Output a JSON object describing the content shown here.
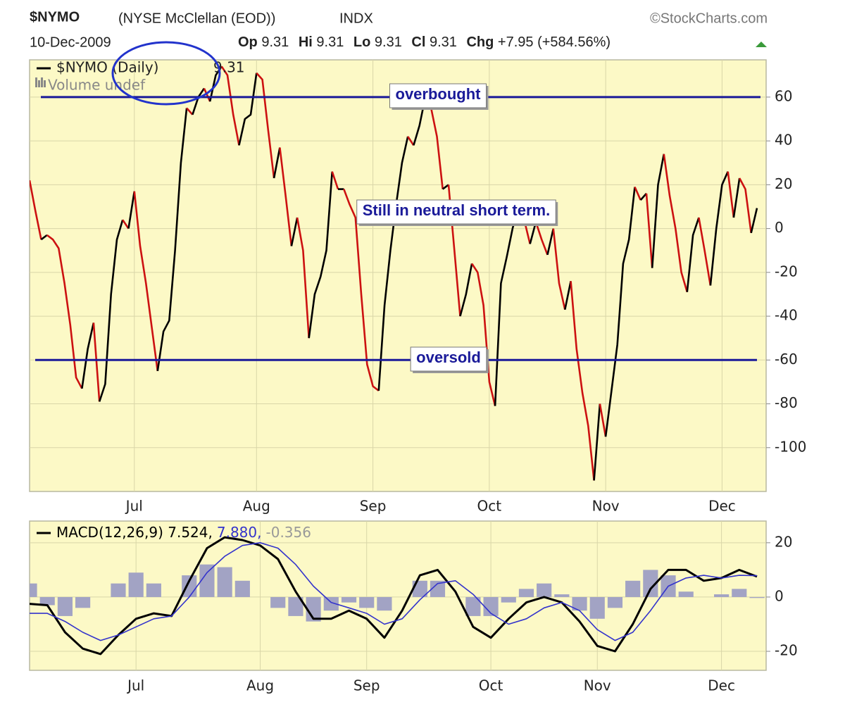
{
  "header": {
    "title": "$NYMO",
    "subtitle": "(NYSE McClellan (EOD))",
    "exchange": "INDX",
    "source": "©StockCharts.com",
    "date": "10-Dec-2009",
    "quote": [
      {
        "label": "Op",
        "value": 9.31
      },
      {
        "label": "Hi",
        "value": 9.31
      },
      {
        "label": "Lo",
        "value": 9.31
      },
      {
        "label": "Cl",
        "value": 9.31
      }
    ],
    "change_label": "Chg",
    "change": "+7.95 (+584.56%)"
  },
  "chart_data": [
    {
      "type": "line",
      "ylim": [
        -120,
        77
      ],
      "yticks": [
        -100,
        -80,
        -60,
        -40,
        -20,
        0,
        20,
        40,
        60
      ],
      "grid": true,
      "color_up": "#000000",
      "color_down": "#cc1111",
      "volume_label": "Volume undef",
      "hlines": [
        {
          "value": 60,
          "color": "#1a1a99"
        },
        {
          "value": -60,
          "color": "#1a1a99"
        }
      ],
      "annotations": [
        "overbought",
        "Still in neutral short term.",
        "oversold"
      ],
      "categories": [
        null,
        null,
        null,
        null,
        null,
        null,
        null,
        null,
        null,
        null,
        null,
        null,
        null,
        null,
        null,
        null,
        null,
        null,
        "Jul",
        null,
        null,
        null,
        null,
        null,
        null,
        null,
        null,
        null,
        null,
        null,
        null,
        null,
        null,
        null,
        null,
        null,
        null,
        null,
        null,
        "Aug",
        null,
        null,
        null,
        null,
        null,
        null,
        null,
        null,
        null,
        null,
        null,
        null,
        null,
        null,
        null,
        null,
        null,
        null,
        null,
        "Sep",
        null,
        null,
        null,
        null,
        null,
        null,
        null,
        null,
        null,
        null,
        null,
        null,
        null,
        null,
        null,
        null,
        null,
        null,
        null,
        "Oct",
        null,
        null,
        null,
        null,
        null,
        null,
        null,
        null,
        null,
        null,
        null,
        null,
        null,
        null,
        null,
        null,
        null,
        null,
        null,
        "Nov",
        null,
        null,
        null,
        null,
        null,
        null,
        null,
        null,
        null,
        null,
        null,
        null,
        null,
        null,
        null,
        null,
        null,
        null,
        null,
        "Dec",
        null,
        null,
        null,
        null,
        null,
        null
      ],
      "series": [
        {
          "name": "$NYMO (Daily)",
          "values": [
            22,
            8,
            -5,
            -3,
            -5,
            -9,
            -25,
            -44,
            -68,
            -73,
            -55,
            -43,
            -79,
            -71,
            -30,
            -5,
            4,
            0,
            17,
            -8,
            -25,
            -45,
            -65,
            -47,
            -42,
            -10,
            30,
            55,
            52,
            60,
            64,
            58,
            70,
            74,
            70,
            52,
            38,
            50,
            52,
            71,
            68,
            45,
            23,
            37,
            15,
            -8,
            5,
            -10,
            -50,
            -30,
            -22,
            -10,
            26,
            18,
            18,
            11,
            5,
            -30,
            -62,
            -72,
            -74,
            -35,
            -10,
            11,
            30,
            42,
            38,
            47,
            60,
            55,
            42,
            18,
            20,
            -10,
            -40,
            -30,
            -16,
            -20,
            -35,
            -70,
            -81,
            -25,
            -13,
            0,
            10,
            4,
            -7,
            3,
            -5,
            -12,
            0,
            -25,
            -37,
            -24,
            -55,
            -75,
            -90,
            -115,
            -80,
            -95,
            -74,
            -53,
            -16,
            -5,
            19,
            13,
            16,
            -18,
            20,
            34,
            15,
            0,
            -20,
            -29,
            -3,
            5,
            -10,
            -26,
            0,
            20,
            26,
            5,
            23,
            18,
            -2,
            9.31
          ]
        }
      ]
    },
    {
      "type": "line",
      "ylim": [
        -27,
        28
      ],
      "yticks": [
        -20,
        0,
        20
      ],
      "grid": true,
      "legend_parts": [
        "MACD(12,26,9) 7.524,",
        "7.880,",
        "-0.356"
      ],
      "categories": [
        null,
        null,
        null,
        null,
        null,
        null,
        "Jul",
        null,
        null,
        null,
        null,
        null,
        null,
        "Aug",
        null,
        null,
        null,
        null,
        null,
        "Sep",
        null,
        null,
        null,
        null,
        null,
        null,
        "Oct",
        null,
        null,
        null,
        null,
        null,
        "Nov",
        null,
        null,
        null,
        null,
        null,
        null,
        "Dec",
        null,
        null
      ],
      "series": [
        {
          "type": "bar",
          "color": "#a2a3c4",
          "values": [
            5,
            -3,
            -7,
            -4,
            0,
            5,
            9,
            5,
            0,
            8,
            12,
            11,
            6,
            0,
            -4,
            -7,
            -9,
            -5,
            -2,
            -4,
            -5,
            0,
            6,
            6,
            0,
            -7,
            -7,
            -2,
            3,
            5,
            1,
            -5,
            -8,
            -4,
            6,
            10,
            8,
            2,
            0,
            1,
            3,
            -0.356
          ]
        },
        {
          "type": "line",
          "color": "#000000",
          "values": [
            -2.5,
            -3,
            -13,
            -19,
            -21,
            -14,
            -8,
            -6,
            -7,
            6,
            18,
            22,
            21,
            19,
            14,
            2,
            -8,
            -8,
            -5,
            -8,
            -15,
            -5,
            8,
            10,
            2,
            -11,
            -15,
            -8,
            -2,
            0,
            -2,
            -9,
            -18,
            -20,
            -10,
            3,
            10,
            10,
            6,
            7,
            10,
            7.524
          ]
        },
        {
          "type": "line",
          "color": "#3333cc",
          "values": [
            -6,
            -6,
            -9,
            -13,
            -16,
            -14,
            -11,
            -8,
            -7,
            0,
            9,
            15,
            19,
            20,
            18,
            12,
            4,
            -2,
            -4,
            -6,
            -10,
            -8,
            -1,
            5,
            6,
            1,
            -6,
            -10,
            -8,
            -4,
            -2,
            -5,
            -12,
            -16,
            -13,
            -5,
            4,
            7,
            8,
            7,
            8,
            7.88
          ]
        }
      ]
    }
  ]
}
